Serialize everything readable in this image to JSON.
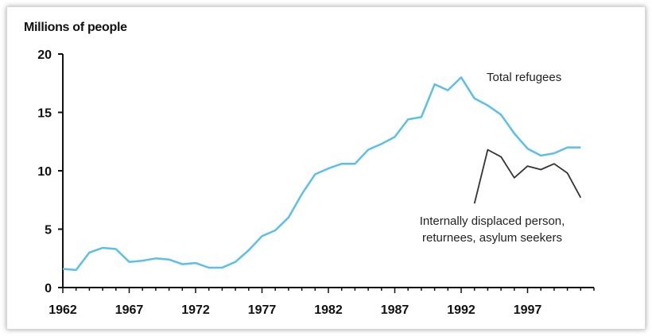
{
  "chart_data": {
    "type": "line",
    "ylabel": "Millions of people",
    "ylim": [
      0,
      20
    ],
    "yticks": [
      0,
      5,
      10,
      15,
      20
    ],
    "xlim": [
      1962,
      2002
    ],
    "xticks": [
      1962,
      1967,
      1972,
      1977,
      1982,
      1987,
      1992,
      1997
    ],
    "grid": false,
    "series": [
      {
        "name": "Total refugees",
        "color": "#5bbfea",
        "x": [
          1962,
          1963,
          1964,
          1965,
          1966,
          1967,
          1968,
          1969,
          1970,
          1971,
          1972,
          1973,
          1974,
          1975,
          1976,
          1977,
          1978,
          1979,
          1980,
          1981,
          1982,
          1983,
          1984,
          1985,
          1986,
          1987,
          1988,
          1989,
          1990,
          1991,
          1992,
          1993,
          1994,
          1995,
          1996,
          1997,
          1998,
          1999,
          2000,
          2001
        ],
        "values": [
          1.6,
          1.5,
          3.0,
          3.4,
          3.3,
          2.2,
          2.3,
          2.5,
          2.4,
          2.0,
          2.1,
          1.7,
          1.7,
          2.2,
          3.2,
          4.4,
          4.9,
          6.0,
          8.0,
          9.7,
          10.2,
          10.6,
          10.6,
          11.8,
          12.3,
          12.9,
          14.4,
          14.6,
          17.4,
          16.9,
          18.0,
          16.2,
          15.6,
          14.8,
          13.2,
          11.9,
          11.3,
          11.5,
          12.0,
          12.0
        ]
      },
      {
        "name": "Internally displaced person, returnees, asylum seekers",
        "color": "#333333",
        "x": [
          1993,
          1994,
          1995,
          1996,
          1997,
          1998,
          1999,
          2000,
          2001
        ],
        "values": [
          7.2,
          11.8,
          11.2,
          9.4,
          10.4,
          10.1,
          10.6,
          9.8,
          7.7
        ]
      }
    ],
    "annotations": [
      {
        "text": "Total refugees"
      },
      {
        "lines": [
          "Internally displaced person,",
          "returnees, asylum seekers"
        ]
      }
    ]
  }
}
